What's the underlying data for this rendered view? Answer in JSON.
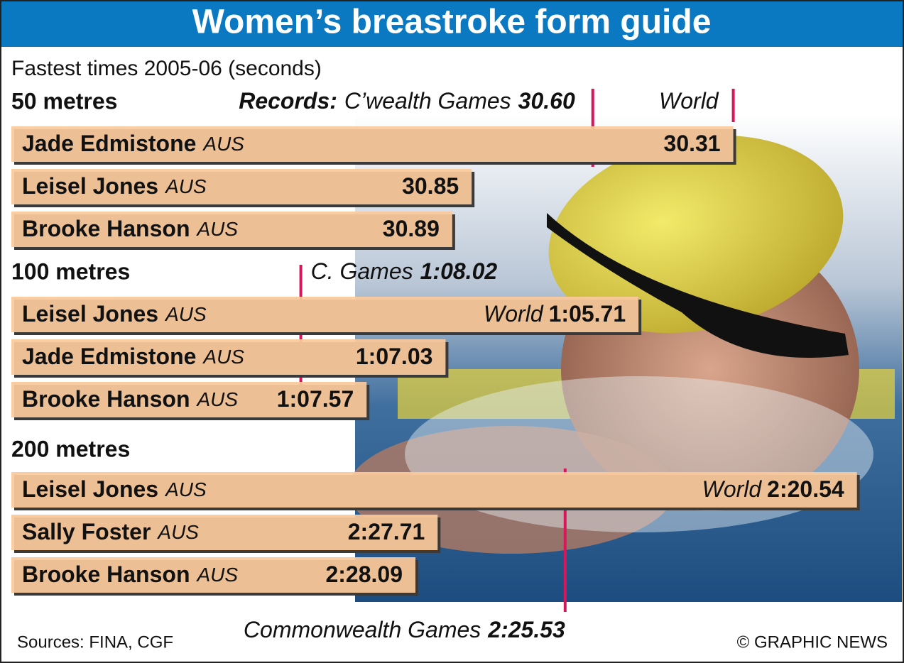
{
  "title": "Women’s breastroke form guide",
  "subtitle": "Fastest times 2005-06 (seconds)",
  "source": "Sources: FINA, CGF",
  "credit": "© GRAPHIC NEWS",
  "chart_data": [
    {
      "type": "bar",
      "title": "50 metres",
      "records_title": "Records:",
      "categories": [
        "Jade Edmistone",
        "Leisel Jones",
        "Brooke Hanson"
      ],
      "countries": [
        "AUS",
        "AUS",
        "AUS"
      ],
      "values": [
        30.31,
        30.85,
        30.89
      ],
      "value_labels": [
        "30.31",
        "30.85",
        "30.89"
      ],
      "color": "#fac99c",
      "xlim": [
        31.8,
        30.05
      ],
      "records": [
        {
          "label": "C’wealth Games",
          "value": 30.6,
          "value_label": "30.60"
        },
        {
          "label": "World",
          "value": 30.31
        }
      ],
      "record_color": "#d7175b"
    },
    {
      "type": "bar",
      "title": "100 metres",
      "categories": [
        "Leisel Jones",
        "Jade Edmistone",
        "Brooke Hanson"
      ],
      "countries": [
        "AUS",
        "AUS",
        "AUS"
      ],
      "values": [
        65.71,
        67.03,
        67.57
      ],
      "value_labels": [
        "1:05.71",
        "1:07.03",
        "1:07.57"
      ],
      "value_prefixes": [
        "World",
        null,
        null
      ],
      "color": "#fac99c",
      "xlim": [
        70,
        64.2
      ],
      "records": [
        {
          "label": "C. Games",
          "value": 68.02,
          "value_label": "1:08.02"
        }
      ],
      "record_color": "#d7175b"
    },
    {
      "type": "bar",
      "title": "200 metres",
      "categories": [
        "Leisel Jones",
        "Sally Foster",
        "Brooke Hanson"
      ],
      "countries": [
        "AUS",
        "AUS",
        "AUS"
      ],
      "values": [
        140.54,
        147.71,
        148.09
      ],
      "value_labels": [
        "2:20.54",
        "2:27.71",
        "2:28.09"
      ],
      "value_prefixes": [
        "World",
        null,
        null
      ],
      "color": "#fac99c",
      "xlim": [
        155,
        140.5
      ],
      "records": [
        {
          "label": "Commonwealth Games",
          "value": 145.53,
          "value_label": "2:25.53"
        }
      ],
      "record_color": "#d7175b"
    }
  ]
}
